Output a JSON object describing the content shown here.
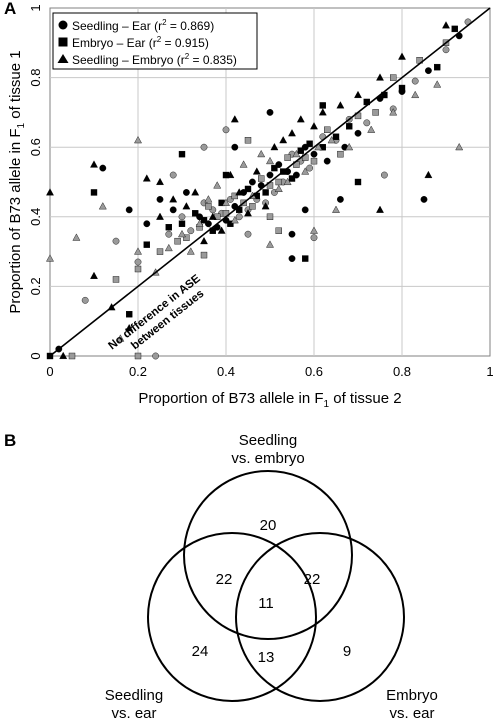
{
  "panel_a": {
    "label": "A",
    "ylabel_pre": "Proportion of B73 allele in F",
    "ylabel_sub": "1",
    "ylabel_post": " of tissue 1",
    "xlabel_pre": "Proportion of B73 allele in F",
    "xlabel_sub": "1",
    "xlabel_post": " of tissue 2",
    "diagonal_label_line1": "No difference in ASE",
    "diagonal_label_line2": "between tissues",
    "legend": [
      {
        "marker": "circle",
        "name": "Seedling – Ear",
        "r2_prefix": " (r",
        "r2_sup": "2",
        "r2_suffix": " = 0.869)"
      },
      {
        "marker": "square",
        "name": "Embryo – Ear",
        "r2_prefix": " (r",
        "r2_sup": "2",
        "r2_suffix": " = 0.915)"
      },
      {
        "marker": "triangle",
        "name": "Seedling – Embryo",
        "r2_prefix": " (r",
        "r2_sup": "2",
        "r2_suffix": " = 0.835)"
      }
    ]
  },
  "panel_b": {
    "label": "B",
    "set_top_line1": "Seedling",
    "set_top_line2": "vs. embryo",
    "set_left_line1": "Seedling",
    "set_left_line2": "vs. ear",
    "set_right_line1": "Embryo",
    "set_right_line2": "vs. ear",
    "counts": {
      "top_only": "20",
      "top_left": "22",
      "top_right": "22",
      "all_three": "11",
      "left_only": "24",
      "left_right": "13",
      "right_only": "9"
    }
  },
  "chart_data": [
    {
      "type": "scatter",
      "xlabel": "Proportion of B73 allele in F1 of tissue 2",
      "ylabel": "Proportion of B73 allele in F1 of tissue 1",
      "xlim": [
        0,
        1
      ],
      "ylim": [
        0,
        1
      ],
      "x_ticks": [
        "0",
        "0.2",
        "0.4",
        "0.6",
        "0.8",
        "1"
      ],
      "y_ticks": [
        "0",
        "0.2",
        "0.4",
        "0.6",
        "0.8",
        "1"
      ],
      "grid": true,
      "legend_position": "top-left",
      "reference_line": {
        "from": [
          0,
          0
        ],
        "to": [
          1,
          1
        ],
        "label": "No difference in ASE between tissues"
      },
      "series": [
        {
          "name": "Seedling – Ear",
          "marker": "circle",
          "r2": 0.869,
          "points": [
            [
              0.02,
              0.02
            ],
            [
              0.08,
              0.16
            ],
            [
              0.12,
              0.54
            ],
            [
              0.15,
              0.33
            ],
            [
              0.18,
              0.42
            ],
            [
              0.2,
              0.27
            ],
            [
              0.22,
              0.38
            ],
            [
              0.24,
              0.0
            ],
            [
              0.25,
              0.45
            ],
            [
              0.27,
              0.35
            ],
            [
              0.28,
              0.42
            ],
            [
              0.3,
              0.4
            ],
            [
              0.31,
              0.47
            ],
            [
              0.32,
              0.36
            ],
            [
              0.34,
              0.4
            ],
            [
              0.35,
              0.44
            ],
            [
              0.36,
              0.38
            ],
            [
              0.37,
              0.42
            ],
            [
              0.38,
              0.37
            ],
            [
              0.39,
              0.41
            ],
            [
              0.4,
              0.39
            ],
            [
              0.41,
              0.45
            ],
            [
              0.42,
              0.43
            ],
            [
              0.43,
              0.4
            ],
            [
              0.44,
              0.47
            ],
            [
              0.45,
              0.42
            ],
            [
              0.46,
              0.5
            ],
            [
              0.47,
              0.45
            ],
            [
              0.48,
              0.49
            ],
            [
              0.49,
              0.44
            ],
            [
              0.5,
              0.52
            ],
            [
              0.51,
              0.47
            ],
            [
              0.52,
              0.55
            ],
            [
              0.53,
              0.5
            ],
            [
              0.54,
              0.53
            ],
            [
              0.55,
              0.58
            ],
            [
              0.56,
              0.52
            ],
            [
              0.57,
              0.56
            ],
            [
              0.58,
              0.6
            ],
            [
              0.59,
              0.54
            ],
            [
              0.6,
              0.58
            ],
            [
              0.62,
              0.63
            ],
            [
              0.63,
              0.56
            ],
            [
              0.65,
              0.62
            ],
            [
              0.67,
              0.6
            ],
            [
              0.68,
              0.68
            ],
            [
              0.7,
              0.64
            ],
            [
              0.72,
              0.67
            ],
            [
              0.75,
              0.74
            ],
            [
              0.78,
              0.71
            ],
            [
              0.8,
              0.76
            ],
            [
              0.83,
              0.79
            ],
            [
              0.86,
              0.82
            ],
            [
              0.9,
              0.88
            ],
            [
              0.93,
              0.92
            ],
            [
              0.95,
              0.96
            ],
            [
              0.55,
              0.35
            ],
            [
              0.6,
              0.34
            ],
            [
              0.42,
              0.6
            ],
            [
              0.28,
              0.52
            ],
            [
              0.66,
              0.45
            ],
            [
              0.76,
              0.52
            ],
            [
              0.55,
              0.28
            ],
            [
              0.35,
              0.6
            ],
            [
              0.85,
              0.45
            ],
            [
              0.4,
              0.65
            ],
            [
              0.5,
              0.7
            ],
            [
              0.45,
              0.35
            ],
            [
              0.58,
              0.42
            ]
          ]
        },
        {
          "name": "Embryo – Ear",
          "marker": "square",
          "r2": 0.915,
          "points": [
            [
              0.0,
              0.0
            ],
            [
              0.05,
              0.0
            ],
            [
              0.1,
              0.47
            ],
            [
              0.15,
              0.22
            ],
            [
              0.18,
              0.12
            ],
            [
              0.2,
              0.25
            ],
            [
              0.22,
              0.32
            ],
            [
              0.25,
              0.3
            ],
            [
              0.27,
              0.37
            ],
            [
              0.29,
              0.33
            ],
            [
              0.3,
              0.38
            ],
            [
              0.31,
              0.34
            ],
            [
              0.33,
              0.41
            ],
            [
              0.34,
              0.37
            ],
            [
              0.35,
              0.39
            ],
            [
              0.36,
              0.43
            ],
            [
              0.37,
              0.36
            ],
            [
              0.38,
              0.4
            ],
            [
              0.39,
              0.44
            ],
            [
              0.4,
              0.41
            ],
            [
              0.41,
              0.38
            ],
            [
              0.42,
              0.46
            ],
            [
              0.43,
              0.42
            ],
            [
              0.44,
              0.44
            ],
            [
              0.45,
              0.48
            ],
            [
              0.46,
              0.43
            ],
            [
              0.47,
              0.46
            ],
            [
              0.48,
              0.51
            ],
            [
              0.49,
              0.47
            ],
            [
              0.5,
              0.49
            ],
            [
              0.51,
              0.54
            ],
            [
              0.52,
              0.5
            ],
            [
              0.53,
              0.53
            ],
            [
              0.54,
              0.57
            ],
            [
              0.55,
              0.51
            ],
            [
              0.56,
              0.55
            ],
            [
              0.57,
              0.59
            ],
            [
              0.58,
              0.57
            ],
            [
              0.59,
              0.61
            ],
            [
              0.6,
              0.56
            ],
            [
              0.62,
              0.6
            ],
            [
              0.63,
              0.65
            ],
            [
              0.65,
              0.63
            ],
            [
              0.66,
              0.58
            ],
            [
              0.68,
              0.66
            ],
            [
              0.7,
              0.69
            ],
            [
              0.72,
              0.73
            ],
            [
              0.74,
              0.7
            ],
            [
              0.76,
              0.75
            ],
            [
              0.78,
              0.8
            ],
            [
              0.8,
              0.77
            ],
            [
              0.84,
              0.85
            ],
            [
              0.88,
              0.83
            ],
            [
              0.9,
              0.9
            ],
            [
              0.92,
              0.94
            ],
            [
              0.2,
              0.0
            ],
            [
              0.58,
              0.28
            ],
            [
              0.52,
              0.36
            ],
            [
              0.3,
              0.58
            ],
            [
              0.45,
              0.62
            ],
            [
              0.7,
              0.5
            ],
            [
              0.35,
              0.29
            ],
            [
              0.62,
              0.72
            ],
            [
              0.5,
              0.4
            ],
            [
              0.4,
              0.52
            ]
          ]
        },
        {
          "name": "Seedling – Embryo",
          "marker": "triangle",
          "r2": 0.835,
          "points": [
            [
              0.0,
              0.47
            ],
            [
              0.0,
              0.28
            ],
            [
              0.03,
              0.0
            ],
            [
              0.06,
              0.34
            ],
            [
              0.1,
              0.23
            ],
            [
              0.12,
              0.43
            ],
            [
              0.14,
              0.14
            ],
            [
              0.16,
              0.05
            ],
            [
              0.18,
              0.08
            ],
            [
              0.2,
              0.3
            ],
            [
              0.22,
              0.51
            ],
            [
              0.24,
              0.24
            ],
            [
              0.25,
              0.4
            ],
            [
              0.27,
              0.31
            ],
            [
              0.28,
              0.45
            ],
            [
              0.3,
              0.35
            ],
            [
              0.31,
              0.43
            ],
            [
              0.32,
              0.3
            ],
            [
              0.33,
              0.47
            ],
            [
              0.34,
              0.38
            ],
            [
              0.35,
              0.33
            ],
            [
              0.36,
              0.45
            ],
            [
              0.37,
              0.4
            ],
            [
              0.38,
              0.49
            ],
            [
              0.39,
              0.36
            ],
            [
              0.4,
              0.44
            ],
            [
              0.41,
              0.52
            ],
            [
              0.42,
              0.39
            ],
            [
              0.43,
              0.47
            ],
            [
              0.44,
              0.55
            ],
            [
              0.45,
              0.41
            ],
            [
              0.46,
              0.46
            ],
            [
              0.47,
              0.53
            ],
            [
              0.48,
              0.58
            ],
            [
              0.49,
              0.43
            ],
            [
              0.5,
              0.56
            ],
            [
              0.51,
              0.6
            ],
            [
              0.52,
              0.48
            ],
            [
              0.53,
              0.62
            ],
            [
              0.54,
              0.5
            ],
            [
              0.55,
              0.64
            ],
            [
              0.56,
              0.58
            ],
            [
              0.57,
              0.68
            ],
            [
              0.58,
              0.53
            ],
            [
              0.6,
              0.66
            ],
            [
              0.61,
              0.6
            ],
            [
              0.62,
              0.7
            ],
            [
              0.64,
              0.62
            ],
            [
              0.66,
              0.72
            ],
            [
              0.68,
              0.6
            ],
            [
              0.7,
              0.75
            ],
            [
              0.73,
              0.65
            ],
            [
              0.75,
              0.8
            ],
            [
              0.78,
              0.7
            ],
            [
              0.8,
              0.86
            ],
            [
              0.83,
              0.75
            ],
            [
              0.86,
              0.52
            ],
            [
              0.88,
              0.78
            ],
            [
              0.9,
              0.95
            ],
            [
              0.93,
              0.6
            ],
            [
              0.1,
              0.55
            ],
            [
              0.2,
              0.62
            ],
            [
              0.25,
              0.5
            ],
            [
              0.65,
              0.42
            ],
            [
              0.75,
              0.42
            ],
            [
              0.5,
              0.32
            ],
            [
              0.42,
              0.68
            ],
            [
              0.6,
              0.36
            ]
          ]
        }
      ]
    },
    {
      "type": "venn",
      "sets": [
        "Seedling vs. embryo",
        "Seedling vs. ear",
        "Embryo vs. ear"
      ],
      "regions": [
        {
          "sets": [
            "Seedling vs. embryo"
          ],
          "value": 20
        },
        {
          "sets": [
            "Seedling vs. ear"
          ],
          "value": 24
        },
        {
          "sets": [
            "Embryo vs. ear"
          ],
          "value": 9
        },
        {
          "sets": [
            "Seedling vs. embryo",
            "Seedling vs. ear"
          ],
          "value": 22
        },
        {
          "sets": [
            "Seedling vs. embryo",
            "Embryo vs. ear"
          ],
          "value": 22
        },
        {
          "sets": [
            "Seedling vs. ear",
            "Embryo vs. ear"
          ],
          "value": 13
        },
        {
          "sets": [
            "Seedling vs. embryo",
            "Seedling vs. ear",
            "Embryo vs. ear"
          ],
          "value": 11
        }
      ]
    }
  ]
}
